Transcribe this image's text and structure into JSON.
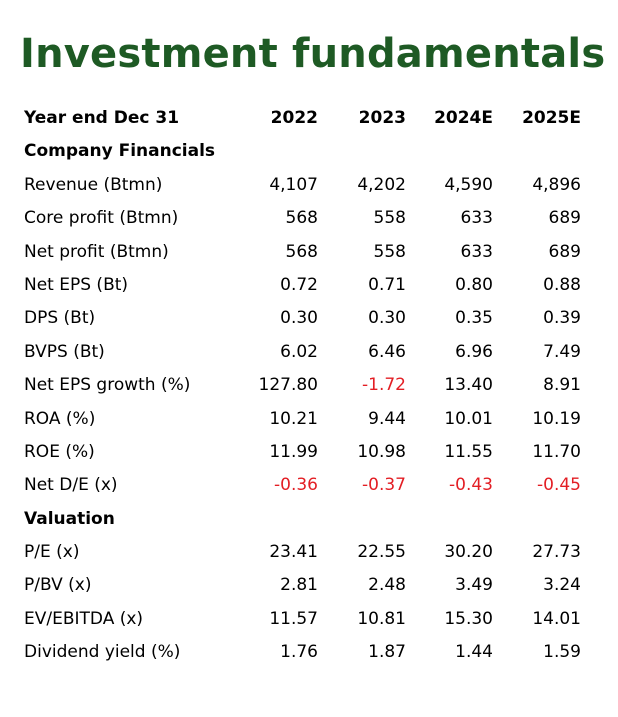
{
  "title": "Investment fundamentals",
  "header": {
    "label": "Year end Dec 31",
    "years": [
      "2022",
      "2023",
      "2024E",
      "2025E"
    ]
  },
  "sections": [
    {
      "heading": "Company Financials",
      "rows": [
        {
          "label": "Revenue (Btmn)",
          "values": [
            "4,107",
            "4,202",
            "4,590",
            "4,896"
          ]
        },
        {
          "label": "Core profit (Btmn)",
          "values": [
            "568",
            "558",
            "633",
            "689"
          ]
        },
        {
          "label": "Net profit (Btmn)",
          "values": [
            "568",
            "558",
            "633",
            "689"
          ]
        },
        {
          "label": "Net EPS (Bt)",
          "values": [
            "0.72",
            "0.71",
            "0.80",
            "0.88"
          ]
        },
        {
          "label": "DPS (Bt)",
          "values": [
            "0.30",
            "0.30",
            "0.35",
            "0.39"
          ]
        },
        {
          "label": "BVPS (Bt)",
          "values": [
            "6.02",
            "6.46",
            "6.96",
            "7.49"
          ]
        },
        {
          "label": "Net EPS growth (%)",
          "values": [
            "127.80",
            "-1.72",
            "13.40",
            "8.91"
          ]
        },
        {
          "label": "ROA (%)",
          "values": [
            "10.21",
            "9.44",
            "10.01",
            "10.19"
          ]
        },
        {
          "label": "ROE (%)",
          "values": [
            "11.99",
            "10.98",
            "11.55",
            "11.70"
          ]
        },
        {
          "label": "Net D/E (x)",
          "values": [
            "-0.36",
            "-0.37",
            "-0.43",
            "-0.45"
          ]
        }
      ]
    },
    {
      "heading": "Valuation",
      "rows": [
        {
          "label": "P/E (x)",
          "values": [
            "23.41",
            "22.55",
            "30.20",
            "27.73"
          ]
        },
        {
          "label": "P/BV (x)",
          "values": [
            "2.81",
            "2.48",
            "3.49",
            "3.24"
          ]
        },
        {
          "label": "EV/EBITDA (x)",
          "values": [
            "11.57",
            "10.81",
            "15.30",
            "14.01"
          ]
        },
        {
          "label": "Dividend yield (%)",
          "values": [
            "1.76",
            "1.87",
            "1.44",
            "1.59"
          ]
        }
      ]
    }
  ],
  "colors": {
    "title": "#1e5a24",
    "negative": "#e31e24",
    "text": "#000000"
  }
}
